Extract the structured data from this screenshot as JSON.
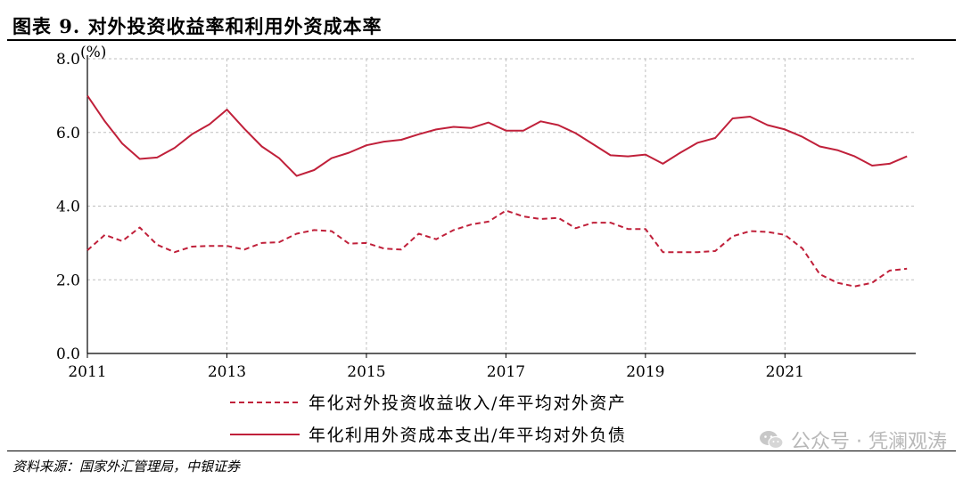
{
  "figure": {
    "title": "图表 9. 对外投资收益率和利用外资成本率",
    "source": "资料来源：国家外汇管理局，中银证券",
    "watermark": "公众号 · 凭澜观涛"
  },
  "chart_data": {
    "type": "line",
    "ylabel": "(%)",
    "ylim": [
      0,
      8
    ],
    "yticks": [
      "0.0",
      "2.0",
      "4.0",
      "6.0",
      "8.0"
    ],
    "xticks": [
      "2011",
      "2013",
      "2015",
      "2017",
      "2019",
      "2021"
    ],
    "xlim": [
      2011.0,
      2022.875
    ],
    "grid": true,
    "legend_position": "bottom-center",
    "colors": {
      "series": "#c0203a",
      "grid": "#bfbfbf",
      "axis": "#000000"
    },
    "x": [
      2011.0,
      2011.25,
      2011.5,
      2011.75,
      2012.0,
      2012.25,
      2012.5,
      2012.75,
      2013.0,
      2013.25,
      2013.5,
      2013.75,
      2014.0,
      2014.25,
      2014.5,
      2014.75,
      2015.0,
      2015.25,
      2015.5,
      2015.75,
      2016.0,
      2016.25,
      2016.5,
      2016.75,
      2017.0,
      2017.25,
      2017.5,
      2017.75,
      2018.0,
      2018.25,
      2018.5,
      2018.75,
      2019.0,
      2019.25,
      2019.5,
      2019.75,
      2020.0,
      2020.25,
      2020.5,
      2020.75,
      2021.0,
      2021.25,
      2021.5,
      2021.75,
      2022.0,
      2022.25,
      2022.5,
      2022.75
    ],
    "series": [
      {
        "name": "年化对外投资收益收入/年平均对外资产",
        "style": "dashed",
        "values": [
          2.8,
          3.22,
          3.05,
          3.42,
          2.95,
          2.75,
          2.9,
          2.92,
          2.92,
          2.82,
          3.0,
          3.02,
          3.25,
          3.35,
          3.32,
          2.98,
          3.0,
          2.85,
          2.82,
          3.25,
          3.1,
          3.35,
          3.5,
          3.58,
          3.88,
          3.72,
          3.65,
          3.68,
          3.4,
          3.55,
          3.55,
          3.38,
          3.38,
          2.75,
          2.75,
          2.75,
          2.78,
          3.18,
          3.32,
          3.3,
          3.22,
          2.85,
          2.15,
          1.92,
          1.82,
          1.92,
          2.25,
          2.3
        ]
      },
      {
        "name": "年化利用外资成本支出/年平均对外负债",
        "style": "solid",
        "values": [
          7.0,
          6.3,
          5.7,
          5.28,
          5.32,
          5.58,
          5.95,
          6.22,
          6.62,
          6.1,
          5.62,
          5.3,
          4.82,
          4.98,
          5.3,
          5.45,
          5.65,
          5.75,
          5.8,
          5.95,
          6.08,
          6.15,
          6.12,
          6.27,
          6.05,
          6.05,
          6.3,
          6.2,
          5.98,
          5.68,
          5.38,
          5.35,
          5.4,
          5.15,
          5.45,
          5.72,
          5.85,
          6.38,
          6.43,
          6.2,
          6.08,
          5.88,
          5.62,
          5.52,
          5.35,
          5.1,
          5.15,
          5.35
        ]
      }
    ]
  }
}
